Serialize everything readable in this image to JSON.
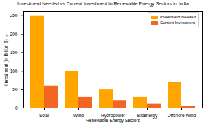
{
  "chart_data": {
    "type": "bar",
    "title": "Investment Needed vs Current Investment in Renewable Energy Sectors in India",
    "x_label": "Renewable Energy Sectors",
    "y_label": "Investment (in Billion $)",
    "categories": [
      "Solar",
      "Wind",
      "Hydropower",
      "Bioenergy",
      "Offshore Wind"
    ],
    "series": [
      {
        "name": "Investment Needed",
        "color": "#ffa500",
        "values": [
          250,
          100,
          50,
          30,
          70
        ]
      },
      {
        "name": "Current Investment",
        "color": "#f26522",
        "values": [
          60,
          30,
          20,
          10,
          5
        ]
      }
    ],
    "ylim": [
      0,
      262.5
    ],
    "yticks": [
      0,
      50,
      100,
      150,
      200,
      250
    ],
    "grid": false,
    "legend": "upper right"
  }
}
